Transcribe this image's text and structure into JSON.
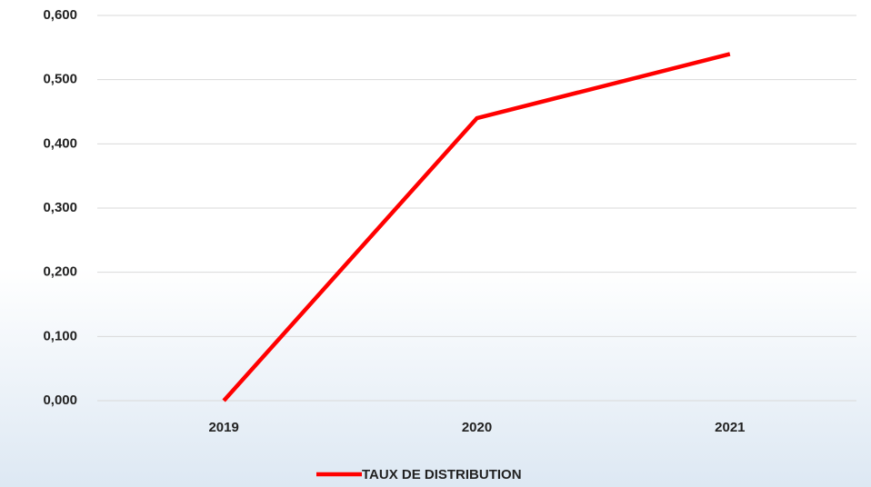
{
  "chart_data": {
    "type": "line",
    "categories": [
      "2019",
      "2020",
      "2021"
    ],
    "series": [
      {
        "name": "TAUX DE DISTRIBUTION",
        "color": "#ff0000",
        "values": [
          0,
          0.44,
          0.54
        ]
      }
    ],
    "ylim": [
      0,
      0.6
    ],
    "yticks": [
      {
        "value": 0,
        "label": "0,000"
      },
      {
        "value": 0.1,
        "label": "0,100"
      },
      {
        "value": 0.2,
        "label": "0,200"
      },
      {
        "value": 0.3,
        "label": "0,300"
      },
      {
        "value": 0.4,
        "label": "0,400"
      },
      {
        "value": 0.5,
        "label": "0,500"
      },
      {
        "value": 0.6,
        "label": "0,600"
      }
    ],
    "grid": true,
    "legend": "bottom"
  }
}
